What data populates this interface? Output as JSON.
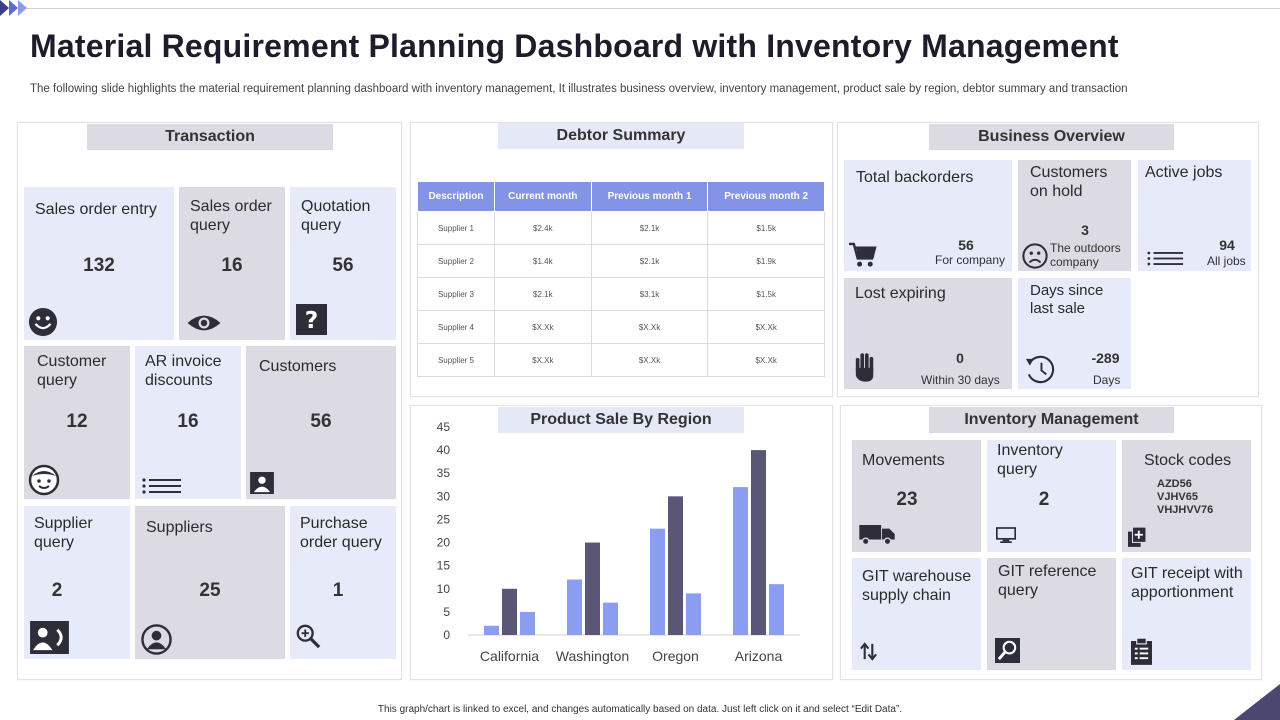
{
  "header": {
    "title": "Material Requirement Planning Dashboard with Inventory Management",
    "subtitle": "The following slide highlights the material requirement planning dashboard with inventory management, It illustrates business overview, inventory management, product sale by region, debtor summary and transaction"
  },
  "transaction": {
    "title": "Transaction",
    "tiles": [
      {
        "label": "Sales order entry",
        "value": "132",
        "icon": "smiley-icon"
      },
      {
        "label": "Sales order query",
        "value": "16",
        "icon": "eye-icon"
      },
      {
        "label": "Quotation query",
        "value": "56",
        "icon": "question-icon"
      },
      {
        "label": "Customer query",
        "value": "12",
        "icon": "face-icon"
      },
      {
        "label": "AR invoice discounts",
        "value": "16",
        "icon": "list-icon"
      },
      {
        "label": "Customers",
        "value": "56",
        "icon": "contact-card-icon"
      },
      {
        "label": "Supplier query",
        "value": "2",
        "icon": "contact-phone-icon"
      },
      {
        "label": "Suppliers",
        "value": "25",
        "icon": "user-circle-icon"
      },
      {
        "label": "Purchase order query",
        "value": "1",
        "icon": "zoom-in-icon"
      }
    ]
  },
  "debtor": {
    "title": "Debtor Summary",
    "columns": [
      "Description",
      "Current month",
      "Previous month 1",
      "Previous month 2"
    ],
    "rows": [
      [
        "Supplier  1",
        "$2.4k",
        "$2.1k",
        "$1.5k"
      ],
      [
        "Supplier  2",
        "$1.4k",
        "$2.1k",
        "$1.9k"
      ],
      [
        "Supplier  3",
        "$2.1k",
        "$3.1k",
        "$1.5k"
      ],
      [
        "Supplier  4",
        "$X.Xk",
        "$X.Xk",
        "$X.Xk"
      ],
      [
        "Supplier  5",
        "$X.Xk",
        "$X.Xk",
        "$X.Xk"
      ]
    ]
  },
  "business": {
    "title": "Business Overview",
    "backorders": {
      "label": "Total backorders",
      "value": "56",
      "sub": "For company"
    },
    "on_hold": {
      "label": "Customers on hold",
      "value": "3",
      "sub": "The outdoors company"
    },
    "active_jobs": {
      "label": "Active jobs",
      "value": "94",
      "sub": "All jobs"
    },
    "lost": {
      "label": "Lost expiring",
      "value": "0",
      "sub": "Within 30 days"
    },
    "days": {
      "label": "Days since last sale",
      "value": "-289",
      "sub": "Days"
    }
  },
  "product_sale": {
    "title": "Product Sale By Region"
  },
  "chart_data": {
    "type": "bar",
    "title": "Product Sale By Region",
    "categories": [
      "California",
      "Washington",
      "Oregon",
      "Arizona"
    ],
    "series": [
      {
        "values": [
          2,
          12,
          23,
          32
        ],
        "color": "#8a9df0"
      },
      {
        "values": [
          10,
          20,
          30,
          40
        ],
        "color": "#595775"
      },
      {
        "values": [
          5,
          7,
          9,
          11
        ],
        "color": "#8a9df0"
      }
    ],
    "ylim": [
      0,
      45
    ],
    "yticks": [
      "0",
      "5",
      "10",
      "15",
      "20",
      "25",
      "30",
      "35",
      "40",
      "45"
    ],
    "grid": false
  },
  "inventory": {
    "title": "Inventory Management",
    "movements": {
      "label": "Movements",
      "value": "23"
    },
    "inv_query": {
      "label": "Inventory query",
      "value": "2"
    },
    "stock": {
      "label": "Stock codes",
      "codes": [
        "AZD56",
        "VJHV65",
        "VHJHVV76"
      ]
    },
    "git_wh": {
      "label": "GIT warehouse supply chain"
    },
    "git_ref": {
      "label": "GIT reference query"
    },
    "git_receipt": {
      "label": "GIT receipt with apportionment"
    }
  },
  "footer": {
    "text": "This graph/chart is linked to excel, and changes automatically based on data. Just left click on it and select “Edit Data”."
  }
}
